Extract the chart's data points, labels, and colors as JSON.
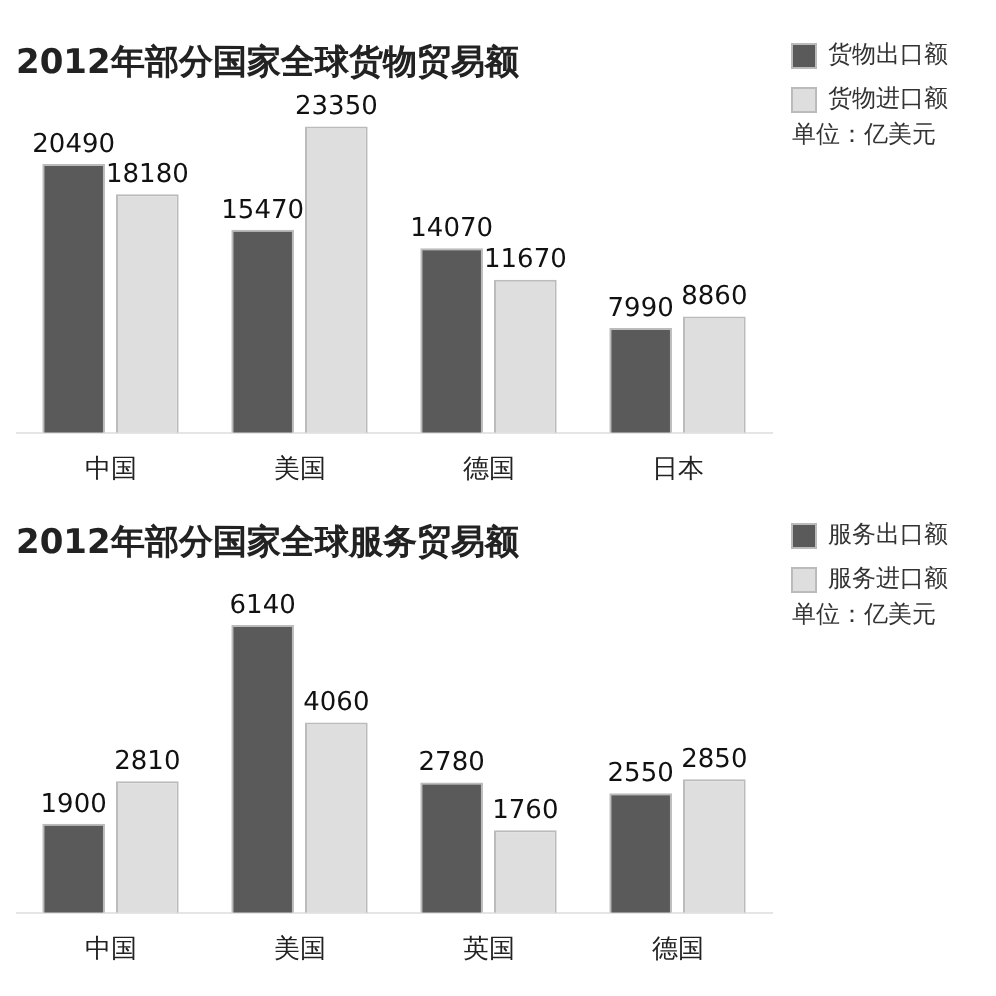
{
  "chart_data": [
    {
      "type": "bar",
      "title": "2012年部分国家全球货物贸易额",
      "categories": [
        "中国",
        "美国",
        "德国",
        "日本"
      ],
      "series": [
        {
          "name": "货物出口额",
          "color": "#5a5a5a",
          "values": [
            20490,
            15470,
            14070,
            7990
          ]
        },
        {
          "name": "货物进口额",
          "color": "#dedede",
          "values": [
            18180,
            23350,
            11670,
            8860
          ]
        }
      ],
      "data_labels": true,
      "legend": "top right",
      "grid": false,
      "annotations": [
        "单位：亿美元"
      ]
    },
    {
      "type": "bar",
      "title": "2012年部分国家全球服务贸易额",
      "categories": [
        "中国",
        "美国",
        "英国",
        "德国"
      ],
      "series": [
        {
          "name": "服务出口额",
          "color": "#5a5a5a",
          "values": [
            1900,
            6140,
            2780,
            2550
          ]
        },
        {
          "name": "服务进口额",
          "color": "#dedede",
          "values": [
            2810,
            4060,
            1760,
            2850
          ]
        }
      ],
      "data_labels": true,
      "legend": "top right",
      "grid": false,
      "annotations": [
        "单位：亿美元"
      ]
    }
  ]
}
